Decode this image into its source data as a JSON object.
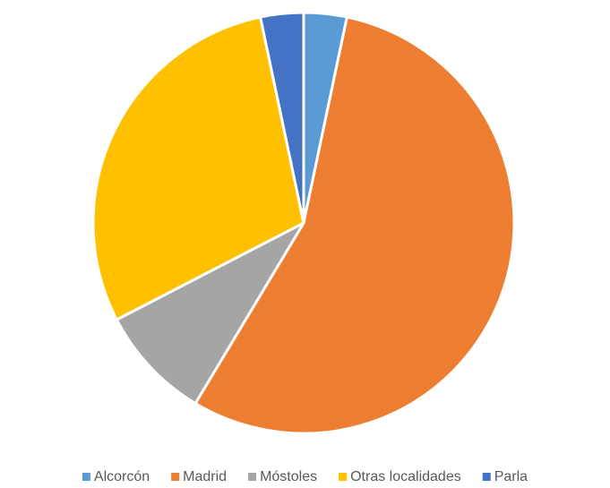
{
  "chart_data": {
    "type": "pie",
    "categories": [
      "Alcorcón",
      "Madrid",
      "Móstoles",
      "Otras localidades",
      "Parla"
    ],
    "values": [
      3.3,
      55.3,
      8.8,
      29.3,
      3.3
    ],
    "colors": [
      "#5b9bd5",
      "#ed7d31",
      "#a5a5a5",
      "#ffc000",
      "#4472c4"
    ],
    "legend": "bottom"
  }
}
